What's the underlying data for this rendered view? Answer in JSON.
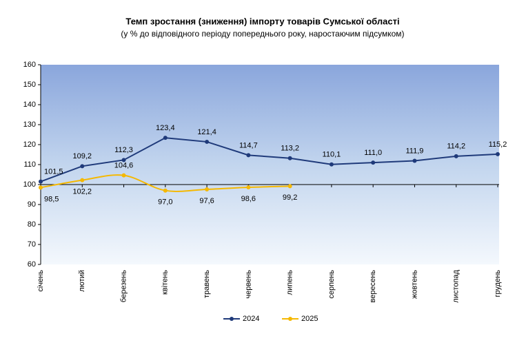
{
  "chart_data": {
    "type": "line",
    "title": "Темп зростання (зниження) імпорту товарів Сумської області",
    "subtitle": "(у % до відповідного періоду попереднього року, наростаючим підсумком)",
    "categories": [
      "січень",
      "лютий",
      "березень",
      "квітень",
      "травень",
      "червень",
      "липень",
      "серпень",
      "вересень",
      "жовтень",
      "листопад",
      "грудень"
    ],
    "series": [
      {
        "name": "2024",
        "color": "#1f3a7a",
        "values": [
          101.5,
          109.2,
          112.3,
          123.4,
          121.4,
          114.7,
          113.2,
          110.1,
          111.0,
          111.9,
          114.2,
          115.2
        ],
        "value_labels": [
          "101,5",
          "109,2",
          "112,3",
          "123,4",
          "121,4",
          "114,7",
          "113,2",
          "110,1",
          "111,0",
          "111,9",
          "114,2",
          "115,2"
        ]
      },
      {
        "name": "2025",
        "color": "#f5b800",
        "values": [
          98.5,
          102.2,
          104.6,
          97.0,
          97.6,
          98.6,
          99.2,
          null,
          null,
          null,
          null,
          null
        ],
        "value_labels": [
          "98,5",
          "102,2",
          "104,6",
          "97,0",
          "97,6",
          "98,6",
          "99,2",
          null,
          null,
          null,
          null,
          null
        ]
      }
    ],
    "ylim": [
      60,
      160
    ],
    "yticks": [
      60,
      70,
      80,
      90,
      100,
      110,
      120,
      130,
      140,
      150,
      160
    ],
    "baseline": 100
  }
}
